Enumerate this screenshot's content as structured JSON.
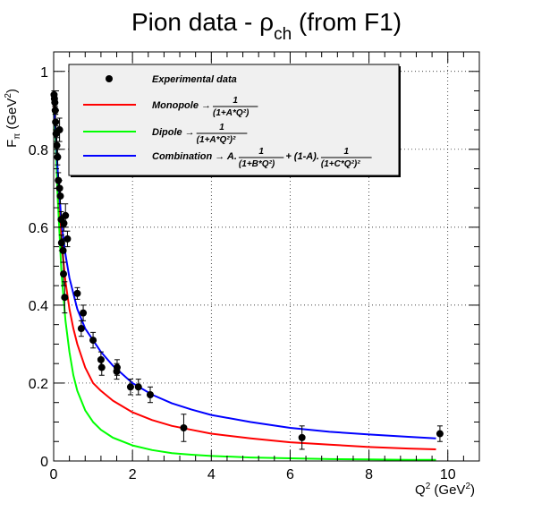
{
  "chart_data": {
    "type": "scatter",
    "title": {
      "prefix": "Pion data - ",
      "symbol": "ρ",
      "subscript": "ch",
      "suffix": " (from F1)"
    },
    "x_axis": {
      "label_base": "Q",
      "label_sup": "2",
      "label_unit_open": " (GeV",
      "label_unit_sup": "2",
      "label_unit_close": ")",
      "range": [
        0,
        10.8
      ],
      "major_ticks": [
        0,
        2,
        4,
        6,
        8,
        10
      ],
      "tick_labels": [
        "0",
        "2",
        "4",
        "6",
        "8",
        "10"
      ],
      "minor_step": 0.4
    },
    "y_axis": {
      "label_base": "F",
      "label_sub": "π",
      "label_unit_open": " (GeV",
      "label_unit_sup": "2",
      "label_unit_close": ")",
      "range": [
        0,
        1.05
      ],
      "major_ticks": [
        0,
        0.2,
        0.4,
        0.6,
        0.8,
        1
      ],
      "tick_labels": [
        "0",
        "0.2",
        "0.4",
        "0.6",
        "0.8",
        "1"
      ],
      "minor_step": 0.05
    },
    "grid": true,
    "legend": {
      "placement": "top-left",
      "entries": [
        {
          "label_text": "Experimental data",
          "marker": "point",
          "color": "#000000"
        },
        {
          "label_text": "Monopole →",
          "marker": "line",
          "color": "#ff0000",
          "formula_numerator": "1",
          "formula_denominator": "(1+A*Q²)"
        },
        {
          "label_text": "Dipole →",
          "marker": "line",
          "color": "#00ff00",
          "formula_numerator": "1",
          "formula_denominator": "(1+A*Q²)²"
        },
        {
          "label_text": "Combination → A.",
          "marker": "line",
          "color": "#0000ff",
          "formula_numerator": "1",
          "formula_denominator": "(1+B*Q²)",
          "mid_text": " + (1-A).",
          "formula_numerator_2": "1",
          "formula_denominator_2": "(1+C*Q²)²"
        }
      ]
    },
    "series": [
      {
        "name": "Experimental data",
        "type": "scatter",
        "color": "#000000",
        "points": [
          {
            "x": 0.01,
            "y": 0.94,
            "err": 0.01
          },
          {
            "x": 0.02,
            "y": 0.93,
            "err": 0.01
          },
          {
            "x": 0.03,
            "y": 0.92,
            "err": 0.01
          },
          {
            "x": 0.04,
            "y": 0.9,
            "err": 0.01
          },
          {
            "x": 0.05,
            "y": 0.87,
            "err": 0.02
          },
          {
            "x": 0.06,
            "y": 0.84,
            "err": 0.02
          },
          {
            "x": 0.08,
            "y": 0.81,
            "err": 0.02
          },
          {
            "x": 0.1,
            "y": 0.78,
            "err": 0.02
          },
          {
            "x": 0.12,
            "y": 0.72,
            "err": 0.02
          },
          {
            "x": 0.15,
            "y": 0.7,
            "err": 0.02
          },
          {
            "x": 0.17,
            "y": 0.68,
            "err": 0.02
          },
          {
            "x": 0.19,
            "y": 0.62,
            "err": 0.02
          },
          {
            "x": 0.15,
            "y": 0.85,
            "err": 0.03
          },
          {
            "x": 0.2,
            "y": 0.56,
            "err": 0.02
          },
          {
            "x": 0.24,
            "y": 0.54,
            "err": 0.03
          },
          {
            "x": 0.25,
            "y": 0.48,
            "err": 0.03
          },
          {
            "x": 0.26,
            "y": 0.61,
            "err": 0.02
          },
          {
            "x": 0.28,
            "y": 0.42,
            "err": 0.04
          },
          {
            "x": 0.3,
            "y": 0.63,
            "err": 0.03
          },
          {
            "x": 0.35,
            "y": 0.57,
            "err": 0.02
          },
          {
            "x": 0.6,
            "y": 0.43,
            "err": 0.015
          },
          {
            "x": 0.7,
            "y": 0.34,
            "err": 0.02
          },
          {
            "x": 0.75,
            "y": 0.38,
            "err": 0.02
          },
          {
            "x": 1.0,
            "y": 0.31,
            "err": 0.02
          },
          {
            "x": 1.2,
            "y": 0.26,
            "err": 0.02
          },
          {
            "x": 1.22,
            "y": 0.24,
            "err": 0.02
          },
          {
            "x": 1.6,
            "y": 0.23,
            "err": 0.02
          },
          {
            "x": 1.61,
            "y": 0.24,
            "err": 0.02
          },
          {
            "x": 1.95,
            "y": 0.19,
            "err": 0.02
          },
          {
            "x": 2.15,
            "y": 0.19,
            "err": 0.02
          },
          {
            "x": 2.45,
            "y": 0.17,
            "err": 0.02
          },
          {
            "x": 3.3,
            "y": 0.085,
            "err": 0.035
          },
          {
            "x": 6.3,
            "y": 0.06,
            "err": 0.03
          },
          {
            "x": 9.8,
            "y": 0.07,
            "err": 0.02
          }
        ]
      },
      {
        "name": "Monopole",
        "type": "line",
        "color": "#ff0000",
        "x": [
          0.0,
          0.05,
          0.1,
          0.2,
          0.3,
          0.4,
          0.5,
          0.6,
          0.8,
          1.0,
          1.2,
          1.5,
          2.0,
          2.5,
          3.0,
          3.5,
          4.0,
          5.0,
          6.0,
          7.0,
          8.0,
          9.0,
          9.7
        ],
        "y": [
          0.92,
          0.84,
          0.72,
          0.56,
          0.46,
          0.39,
          0.34,
          0.3,
          0.24,
          0.2,
          0.18,
          0.155,
          0.125,
          0.105,
          0.09,
          0.08,
          0.07,
          0.058,
          0.048,
          0.042,
          0.036,
          0.032,
          0.03
        ]
      },
      {
        "name": "Dipole",
        "type": "line",
        "color": "#00ff00",
        "x": [
          0.0,
          0.05,
          0.1,
          0.2,
          0.3,
          0.4,
          0.5,
          0.6,
          0.8,
          1.0,
          1.2,
          1.5,
          2.0,
          2.5,
          3.0,
          3.5,
          4.0,
          5.0,
          6.0,
          7.0,
          8.0,
          9.0,
          9.7
        ],
        "y": [
          0.9,
          0.82,
          0.68,
          0.48,
          0.36,
          0.28,
          0.22,
          0.18,
          0.13,
          0.1,
          0.08,
          0.06,
          0.04,
          0.028,
          0.02,
          0.016,
          0.013,
          0.009,
          0.007,
          0.005,
          0.004,
          0.003,
          0.003
        ]
      },
      {
        "name": "Combination",
        "type": "line",
        "color": "#0000ff",
        "x": [
          0.0,
          0.05,
          0.1,
          0.2,
          0.3,
          0.4,
          0.5,
          0.6,
          0.8,
          1.0,
          1.2,
          1.5,
          2.0,
          2.5,
          3.0,
          3.5,
          4.0,
          5.0,
          6.0,
          7.0,
          8.0,
          9.0,
          9.7
        ],
        "y": [
          0.93,
          0.85,
          0.75,
          0.61,
          0.53,
          0.47,
          0.43,
          0.39,
          0.34,
          0.31,
          0.28,
          0.245,
          0.2,
          0.17,
          0.148,
          0.132,
          0.118,
          0.1,
          0.085,
          0.075,
          0.068,
          0.062,
          0.058
        ]
      }
    ]
  }
}
